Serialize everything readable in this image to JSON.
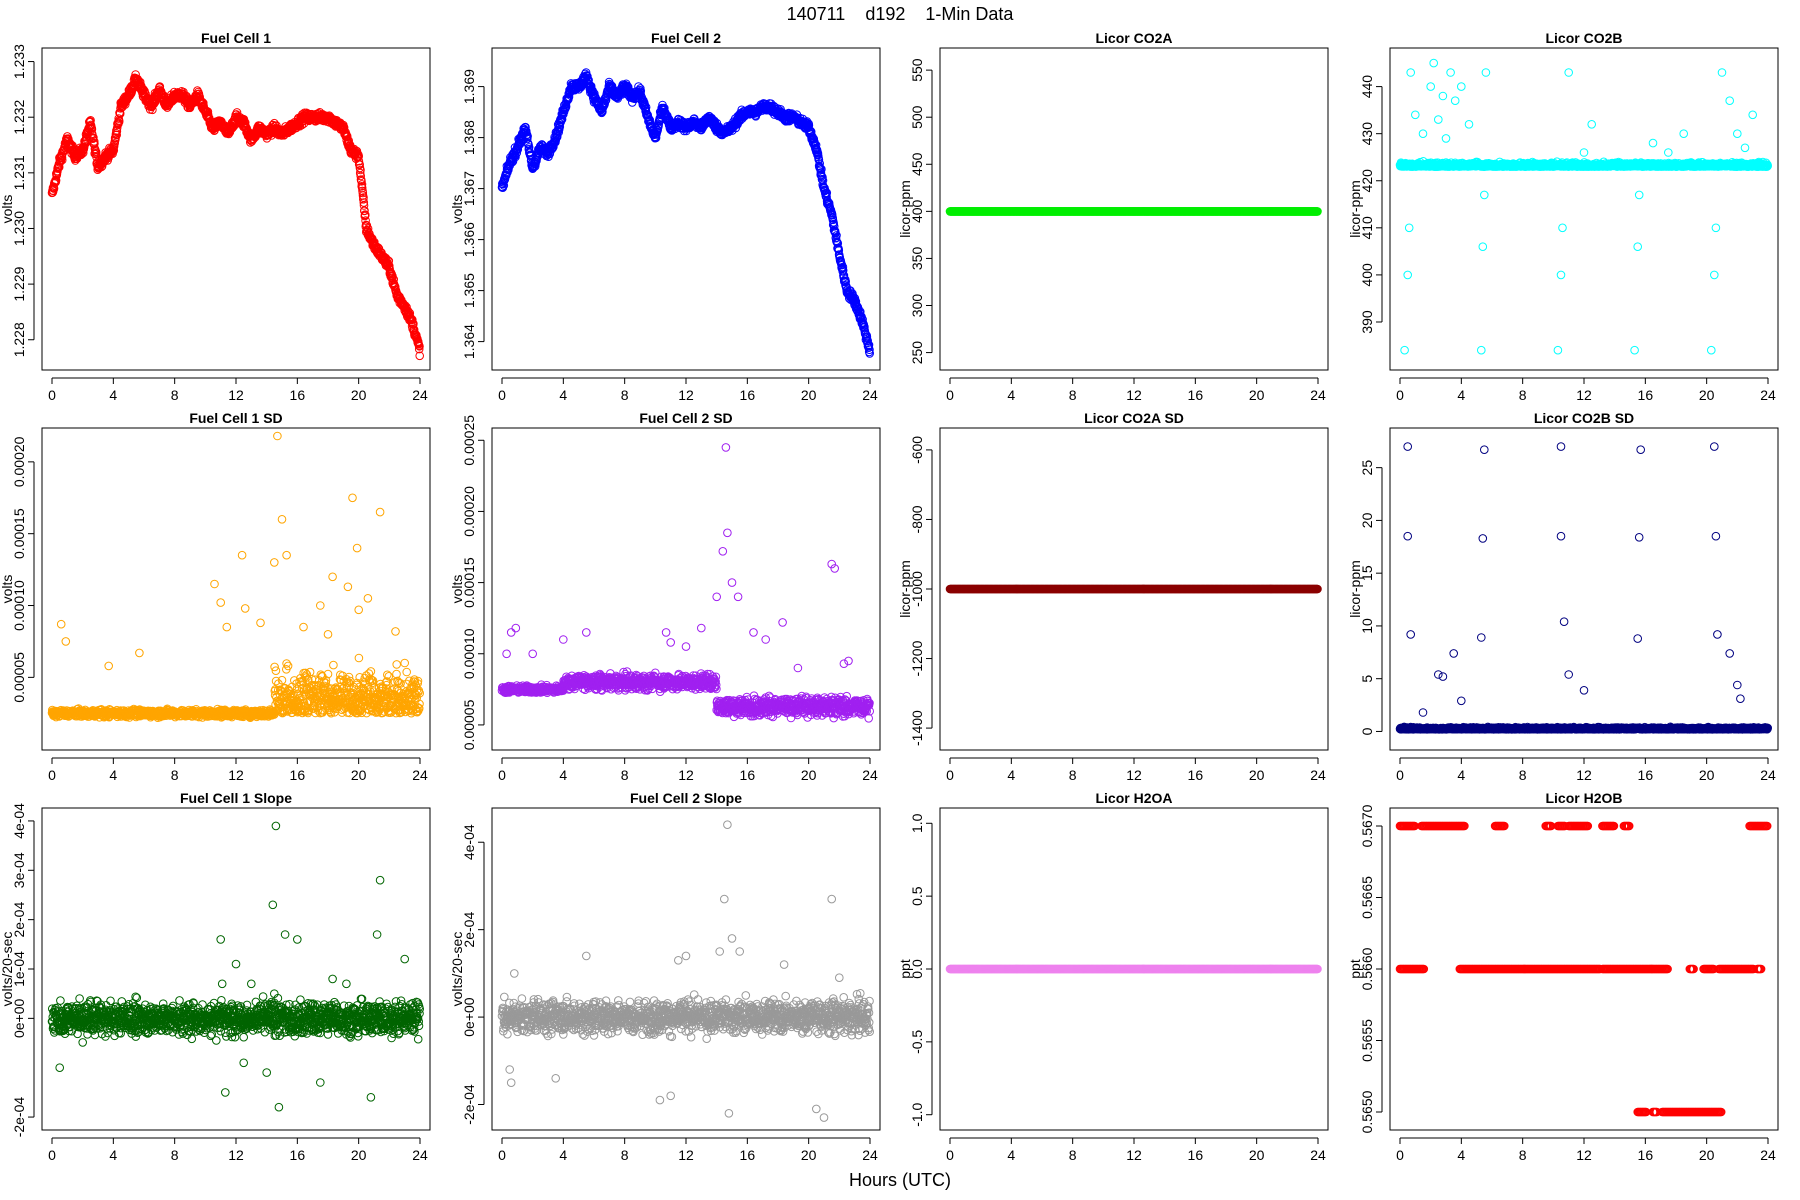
{
  "page": {
    "title": "140711    d192    1-Min Data",
    "xlabel": "Hours (UTC)"
  },
  "chart_data": [
    {
      "type": "scatter",
      "title": "Fuel Cell 1",
      "ylabel": "volts",
      "color": "#ff0000",
      "xlim": [
        0,
        24
      ],
      "ylim": [
        1.2276,
        1.2331
      ],
      "xticks": [
        0,
        4,
        8,
        12,
        16,
        20,
        24
      ],
      "yticks": [
        "1.228",
        "1.229",
        "1.230",
        "1.231",
        "1.232",
        "1.233"
      ],
      "x": [
        0,
        0.5,
        1,
        1.5,
        2,
        2.5,
        3,
        3.5,
        4,
        4.5,
        5,
        5.5,
        6,
        6.5,
        7,
        7.5,
        8,
        8.5,
        9,
        9.5,
        10,
        10.5,
        11,
        11.5,
        12,
        12.5,
        13,
        13.5,
        14,
        14.5,
        15,
        15.5,
        16,
        16.5,
        17,
        17.5,
        18,
        18.5,
        19,
        19.5,
        20,
        20.5,
        21,
        21.5,
        22,
        22.5,
        23,
        23.5,
        24
      ],
      "y": [
        1.2306,
        1.2312,
        1.2316,
        1.2313,
        1.2314,
        1.2319,
        1.2311,
        1.2313,
        1.2314,
        1.2322,
        1.2324,
        1.2327,
        1.2324,
        1.2322,
        1.2325,
        1.2322,
        1.2324,
        1.2324,
        1.2322,
        1.2324,
        1.2321,
        1.2318,
        1.2319,
        1.2317,
        1.232,
        1.2319,
        1.2316,
        1.2318,
        1.2317,
        1.2318,
        1.2317,
        1.2318,
        1.2319,
        1.232,
        1.232,
        1.232,
        1.232,
        1.2319,
        1.2318,
        1.2314,
        1.2313,
        1.23,
        1.2297,
        1.2295,
        1.2293,
        1.2288,
        1.2286,
        1.2283,
        1.2278
      ]
    },
    {
      "type": "scatter",
      "title": "Fuel Cell 2",
      "ylabel": "volts",
      "color": "#0000ff",
      "xlim": [
        0,
        24
      ],
      "ylim": [
        1.3636,
        1.3696
      ],
      "xticks": [
        0,
        4,
        8,
        12,
        16,
        20,
        24
      ],
      "yticks": [
        "1.364",
        "1.365",
        "1.366",
        "1.367",
        "1.368",
        "1.369"
      ],
      "x": [
        0,
        0.5,
        1,
        1.5,
        2,
        2.5,
        3,
        3.5,
        4,
        4.5,
        5,
        5.5,
        6,
        6.5,
        7,
        7.5,
        8,
        8.5,
        9,
        9.5,
        10,
        10.5,
        11,
        11.5,
        12,
        12.5,
        13,
        13.5,
        14,
        14.5,
        15,
        15.5,
        16,
        16.5,
        17,
        17.5,
        18,
        18.5,
        19,
        19.5,
        20,
        20.5,
        21,
        21.5,
        22,
        22.5,
        23,
        23.5,
        24
      ],
      "y": [
        1.367,
        1.3675,
        1.3678,
        1.3682,
        1.3674,
        1.3678,
        1.3677,
        1.368,
        1.3685,
        1.369,
        1.369,
        1.3692,
        1.3688,
        1.3685,
        1.369,
        1.3688,
        1.369,
        1.3688,
        1.3689,
        1.3684,
        1.368,
        1.3686,
        1.3682,
        1.3683,
        1.3682,
        1.3683,
        1.3682,
        1.3684,
        1.3682,
        1.3681,
        1.3682,
        1.3684,
        1.3685,
        1.3685,
        1.3686,
        1.3686,
        1.3685,
        1.3684,
        1.3684,
        1.3683,
        1.3682,
        1.3678,
        1.367,
        1.3665,
        1.3657,
        1.365,
        1.3648,
        1.3644,
        1.3638
      ]
    },
    {
      "type": "scatter",
      "title": "Licor CO2A",
      "ylabel": "licor-ppm",
      "color": "#00ee00",
      "xlim": [
        0,
        24
      ],
      "ylim": [
        240,
        565
      ],
      "xticks": [
        0,
        4,
        8,
        12,
        16,
        20,
        24
      ],
      "yticks": [
        "250",
        "300",
        "350",
        "400",
        "450",
        "500",
        "550"
      ],
      "x": [
        0,
        24
      ],
      "y": [
        400,
        400
      ],
      "constant": true
    },
    {
      "type": "scatter",
      "title": "Licor CO2B",
      "ylabel": "licor-ppm",
      "color": "#00ffff",
      "xlim": [
        0,
        24
      ],
      "ylim": [
        381.5,
        446.5
      ],
      "xticks": [
        0,
        4,
        8,
        12,
        16,
        20,
        24
      ],
      "yticks": [
        "390",
        "400",
        "410",
        "420",
        "430",
        "440"
      ],
      "baseline": 423,
      "x": [
        0.3,
        0.5,
        0.6,
        0.7,
        1.0,
        1.5,
        2.0,
        2.2,
        2.5,
        2.8,
        3.0,
        3.3,
        3.6,
        4.0,
        4.5,
        5.3,
        5.4,
        5.5,
        5.6,
        6.5,
        10.3,
        10.5,
        10.6,
        11.0,
        12.0,
        12.5,
        15.3,
        15.5,
        15.6,
        16.5,
        17.5,
        18.5,
        20.3,
        20.5,
        20.6,
        21.0,
        21.5,
        22.0,
        22.5,
        23.0
      ],
      "y": [
        384,
        400,
        410,
        443,
        434,
        430,
        440,
        445,
        433,
        438,
        429,
        443,
        437,
        440,
        432,
        384,
        406,
        417,
        443,
        424,
        384,
        400,
        410,
        443,
        426,
        432,
        384,
        406,
        417,
        428,
        426,
        430,
        384,
        400,
        410,
        443,
        437,
        430,
        427,
        434
      ]
    },
    {
      "type": "scatter",
      "title": "Fuel Cell 1 SD",
      "ylabel": "volts",
      "color": "#ffa500",
      "xlim": [
        0,
        24
      ],
      "ylim": [
        5e-06,
        0.000218
      ],
      "xticks": [
        0,
        4,
        8,
        12,
        16,
        20,
        24
      ],
      "yticks": [
        "0.00005",
        "0.00010",
        "0.00015",
        "0.00020"
      ],
      "baseline": 2.5e-05,
      "x": [
        0.6,
        0.9,
        3.7,
        5.7,
        10.6,
        11.0,
        11.4,
        12.4,
        12.6,
        13.6,
        14.5,
        14.7,
        15.0,
        15.3,
        16.4,
        17.5,
        18.0,
        18.3,
        19.3,
        19.6,
        19.9,
        20.0,
        20.6,
        21.4,
        22.4,
        23.0
      ],
      "y": [
        8.7e-05,
        7.5e-05,
        5.8e-05,
        6.7e-05,
        0.000115,
        0.000102,
        8.5e-05,
        0.000135,
        9.8e-05,
        8.8e-05,
        0.00013,
        0.000218,
        0.00016,
        0.000135,
        8.5e-05,
        0.0001,
        8e-05,
        0.00012,
        0.000113,
        0.000175,
        0.00014,
        9.7e-05,
        0.000105,
        0.000165,
        8.2e-05,
        6e-05
      ]
    },
    {
      "type": "scatter",
      "title": "Fuel Cell 2 SD",
      "ylabel": "volts",
      "color": "#a020f0",
      "xlim": [
        0,
        24
      ],
      "ylim": [
        3.8e-05,
        0.000253
      ],
      "xticks": [
        0,
        4,
        8,
        12,
        16,
        20,
        24
      ],
      "yticks": [
        "0.00005",
        "0.00010",
        "0.00015",
        "0.00020",
        "0.00025"
      ],
      "baseline": 7.5e-05,
      "x": [
        0.3,
        0.6,
        0.9,
        2.0,
        4.0,
        5.5,
        10.7,
        11.0,
        12.0,
        13.0,
        14.0,
        14.4,
        14.6,
        14.7,
        15.0,
        15.4,
        16.4,
        17.2,
        18.3,
        19.3,
        21.5,
        21.7,
        22.3,
        22.6
      ],
      "y": [
        0.0001,
        0.000115,
        0.000118,
        0.0001,
        0.00011,
        0.000115,
        0.000115,
        0.000108,
        0.000105,
        0.000118,
        0.00014,
        0.000172,
        0.000245,
        0.000185,
        0.00015,
        0.00014,
        0.000115,
        0.00011,
        0.000122,
        9e-05,
        0.000163,
        0.00016,
        9.3e-05,
        9.5e-05
      ]
    },
    {
      "type": "scatter",
      "title": "Licor CO2A SD",
      "ylabel": "licor-ppm",
      "color": "#8b0000",
      "xlim": [
        0,
        24
      ],
      "ylim": [
        -1440,
        -560
      ],
      "xticks": [
        0,
        4,
        8,
        12,
        16,
        20,
        24
      ],
      "yticks": [
        "-1400",
        "-1200",
        "-1000",
        "-800",
        "-600"
      ],
      "x": [
        0,
        24
      ],
      "y": [
        -1000,
        -1000
      ],
      "constant": true
    },
    {
      "type": "scatter",
      "title": "Licor CO2B SD",
      "ylabel": "licor-ppm",
      "color": "#000080",
      "xlim": [
        0,
        24
      ],
      "ylim": [
        -1,
        28
      ],
      "xticks": [
        0,
        4,
        8,
        12,
        16,
        20,
        24
      ],
      "yticks": [
        "0",
        "5",
        "10",
        "15",
        "20",
        "25"
      ],
      "baseline": 0.2,
      "x": [
        0.5,
        0.5,
        0.7,
        1.5,
        2.5,
        2.8,
        3.5,
        4.0,
        5.3,
        5.4,
        5.5,
        10.5,
        10.5,
        10.7,
        11.0,
        12.0,
        15.5,
        15.6,
        15.7,
        20.5,
        20.6,
        20.7,
        21.5,
        22.0,
        22.2
      ],
      "y": [
        27,
        18.5,
        9.2,
        1.8,
        5.4,
        5.2,
        7.4,
        2.9,
        8.9,
        18.3,
        26.7,
        27,
        18.5,
        10.4,
        5.4,
        3.9,
        8.8,
        18.4,
        26.7,
        27,
        18.5,
        9.2,
        7.4,
        4.4,
        3.1
      ]
    },
    {
      "type": "scatter",
      "title": "Fuel Cell 1 Slope",
      "ylabel": "volts/20-sec",
      "color": "#006400",
      "xlim": [
        0,
        24
      ],
      "ylim": [
        -0.00021,
        0.00041
      ],
      "xticks": [
        0,
        4,
        8,
        12,
        16,
        20,
        24
      ],
      "yticks": [
        "-2e-04",
        "",
        "0e+00",
        "1e-04",
        "2e-04",
        "3e-04",
        "4e-04"
      ],
      "baseline": 0,
      "x": [
        0.5,
        11.0,
        11.3,
        12.0,
        13.0,
        14.0,
        14.4,
        14.6,
        14.8,
        15.2,
        16.0,
        17.5,
        18.3,
        19.2,
        21.2,
        21.4,
        20.8,
        23.0,
        11.1,
        12.5,
        14.5
      ],
      "y": [
        -0.0001,
        0.00016,
        -0.00015,
        0.00011,
        7e-05,
        -0.00011,
        0.00023,
        0.00039,
        -0.00018,
        0.00017,
        0.00016,
        -0.00013,
        8e-05,
        7e-05,
        0.00017,
        0.00028,
        -0.00016,
        0.00012,
        7e-05,
        -9e-05,
        5e-05
      ]
    },
    {
      "type": "scatter",
      "title": "Fuel Cell 2 Slope",
      "ylabel": "volts/20-sec",
      "color": "#999999",
      "xlim": [
        0,
        24
      ],
      "ylim": [
        -0.00024,
        0.00046
      ],
      "xticks": [
        0,
        4,
        8,
        12,
        16,
        20,
        24
      ],
      "yticks": [
        "-2e-04",
        "0e+00",
        "2e-04",
        "4e-04"
      ],
      "baseline": 0,
      "x": [
        0.5,
        0.6,
        0.8,
        3.5,
        5.5,
        10.3,
        11.0,
        11.5,
        12.0,
        14.2,
        14.5,
        14.7,
        14.8,
        15.0,
        15.5,
        18.4,
        20.5,
        21.0,
        21.5,
        22.0
      ],
      "y": [
        -0.00012,
        -0.00015,
        0.0001,
        -0.00014,
        0.00014,
        -0.00019,
        -0.00018,
        0.00013,
        0.00014,
        0.00015,
        0.00027,
        0.00044,
        -0.00022,
        0.00018,
        0.00015,
        0.00012,
        -0.00021,
        -0.00023,
        0.00027,
        9e-05
      ]
    },
    {
      "type": "scatter",
      "title": "Licor H2OA",
      "ylabel": "ppt",
      "color": "#ee82ee",
      "xlim": [
        0,
        24
      ],
      "ylim": [
        -1.05,
        1.05
      ],
      "xticks": [
        0,
        4,
        8,
        12,
        16,
        20,
        24
      ],
      "yticks": [
        "-1.0",
        "-0.5",
        "0.0",
        "0.5",
        "1.0"
      ],
      "x": [
        0,
        24
      ],
      "y": [
        0,
        0
      ],
      "constant": true
    },
    {
      "type": "scatter",
      "title": "Licor H2OB",
      "ylabel": "ppt",
      "color": "#ff0000",
      "xlim": [
        0,
        24
      ],
      "ylim": [
        0.56493,
        0.56707
      ],
      "xticks": [
        0,
        4,
        8,
        12,
        16,
        20,
        24
      ],
      "yticks": [
        "0.5650",
        "0.5655",
        "0.5660",
        "0.5665",
        "0.5670"
      ],
      "segments": [
        {
          "y": 0.567,
          "ranges": [
            [
              0,
              1.0
            ],
            [
              1.4,
              4.2
            ],
            [
              6.2,
              6.8
            ],
            [
              9.5,
              9.9
            ],
            [
              10.3,
              10.8
            ],
            [
              11.0,
              12.3
            ],
            [
              13.2,
              14.0
            ],
            [
              14.6,
              15.0
            ],
            [
              22.8,
              24.0
            ]
          ]
        },
        {
          "y": 0.566,
          "ranges": [
            [
              0,
              1.6
            ],
            [
              3.9,
              9.8
            ],
            [
              9.8,
              13.1
            ],
            [
              13.2,
              17.5
            ],
            [
              18.9,
              19.2
            ],
            [
              19.8,
              20.5
            ],
            [
              20.8,
              23.1
            ],
            [
              23.3,
              23.6
            ]
          ]
        },
        {
          "y": 0.565,
          "ranges": [
            [
              15.5,
              16.1
            ],
            [
              16.5,
              16.8
            ],
            [
              17.1,
              21.0
            ]
          ]
        }
      ]
    }
  ]
}
